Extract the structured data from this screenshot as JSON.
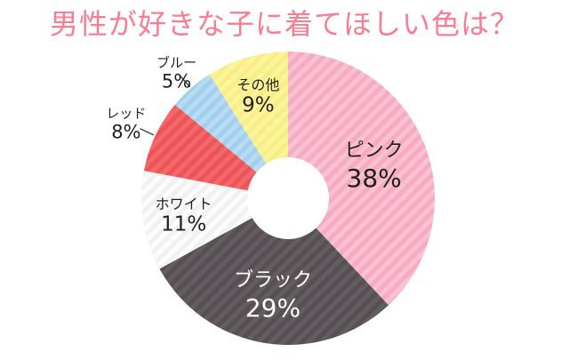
{
  "title": "男性が好きな子に着てほしい色は？",
  "title_color": "#fa7c91",
  "chart_data": {
    "type": "pie",
    "subtype": "donut",
    "title": "男性が好きな子に着てほしい色は？",
    "unit": "%",
    "start_angle_deg": 0,
    "direction": "clockwise",
    "stripe_angle_deg": 45,
    "categories": [
      "ピンク",
      "ブラック",
      "ホワイト",
      "レッド",
      "ブルー",
      "その他"
    ],
    "values": [
      38,
      29,
      11,
      8,
      5,
      9
    ],
    "slices": [
      {
        "name": "pink",
        "label": "ピンク",
        "pct_label": "38%",
        "value": 38,
        "stripe_colors": [
          "#f9c1d1",
          "#f6abc3"
        ],
        "text_color": "#1f1f1f",
        "label_placement": "inside",
        "label_r": 0.63
      },
      {
        "name": "black",
        "label": "ブラック",
        "pct_label": "29%",
        "value": 29,
        "stripe_colors": [
          "#635d60",
          "#565054"
        ],
        "text_color": "#ffffff",
        "label_placement": "inside",
        "label_r": 0.66
      },
      {
        "name": "white",
        "label": "ホワイト",
        "pct_label": "11%",
        "value": 11,
        "stripe_colors": [
          "#fcfcfc",
          "#f1f1f1"
        ],
        "text_color": "#1f1f1f",
        "label_placement": "inside",
        "label_r": 0.72
      },
      {
        "name": "red",
        "label": "レッド",
        "pct_label": "8%",
        "value": 8,
        "stripe_colors": [
          "#f3696b",
          "#ee5358"
        ],
        "text_color": "#1f1f1f",
        "label_placement": "outside",
        "label_r": 1.22
      },
      {
        "name": "blue",
        "label": "ブルー",
        "pct_label": "5%",
        "value": 5,
        "stripe_colors": [
          "#b9dcf3",
          "#a0d0ed"
        ],
        "text_color": "#1f1f1f",
        "label_placement": "outside",
        "label_r": 1.15
      },
      {
        "name": "other",
        "label": "その他",
        "pct_label": "9%",
        "value": 9,
        "stripe_colors": [
          "#fbf49c",
          "#f9ee86"
        ],
        "text_color": "#1f1f1f",
        "label_placement": "inside",
        "label_r": 0.73
      }
    ],
    "leader_line_color": "#3a3a3a"
  }
}
